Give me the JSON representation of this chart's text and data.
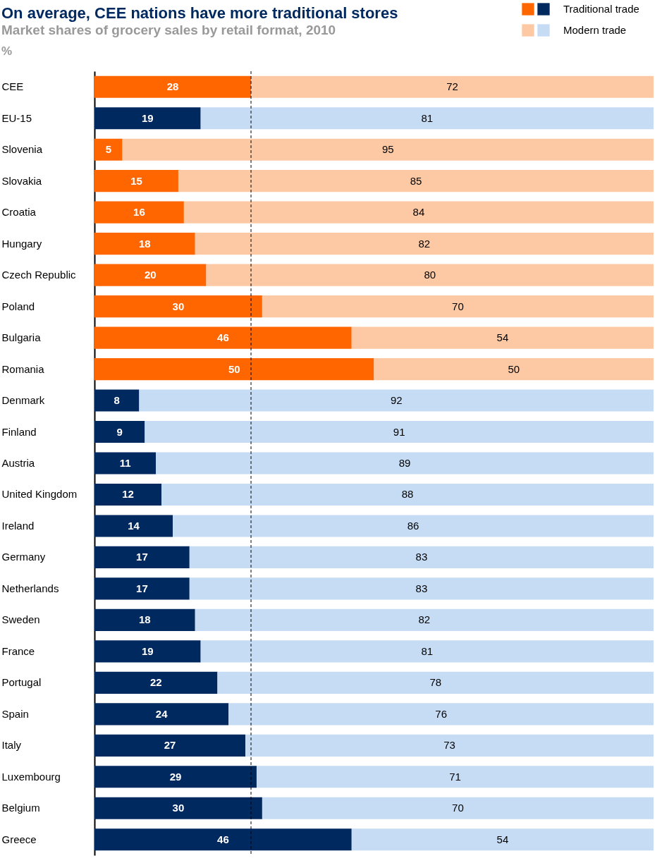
{
  "chart_data": {
    "type": "bar",
    "orientation": "horizontal",
    "stacked": true,
    "title": "On average, CEE nations have more traditional stores",
    "subtitle": "Market shares of grocery sales by retail format, 2010",
    "annotations": [
      "%"
    ],
    "categories": [
      "CEE",
      "EU-15",
      "Slovenia",
      "Slovakia",
      "Croatia",
      "Hungary",
      "Czech Republic",
      "Poland",
      "Bulgaria",
      "Romania",
      "Denmark",
      "Finland",
      "Austria",
      "United Kingdom",
      "Ireland",
      "Germany",
      "Netherlands",
      "Sweden",
      "France",
      "Portugal",
      "Spain",
      "Italy",
      "Luxembourg",
      "Belgium",
      "Greece"
    ],
    "series": [
      {
        "name": "Traditional trade",
        "color": "#ff6600",
        "colors": [
          "#ff6600",
          "#002960",
          "#ff6600",
          "#ff6600",
          "#ff6600",
          "#ff6600",
          "#ff6600",
          "#ff6600",
          "#ff6600",
          "#ff6600",
          "#002960",
          "#002960",
          "#002960",
          "#002960",
          "#002960",
          "#002960",
          "#002960",
          "#002960",
          "#002960",
          "#002960",
          "#002960",
          "#002960",
          "#002960",
          "#002960",
          "#002960"
        ],
        "values": [
          28,
          19,
          5,
          15,
          16,
          18,
          20,
          30,
          46,
          50,
          8,
          9,
          11,
          12,
          14,
          17,
          17,
          18,
          19,
          22,
          24,
          27,
          29,
          30,
          46
        ]
      },
      {
        "name": "Modern trade",
        "color": "#fdc9a4",
        "colors": [
          "#fdc9a4",
          "#c6dcf5",
          "#fdc9a4",
          "#fdc9a4",
          "#fdc9a4",
          "#fdc9a4",
          "#fdc9a4",
          "#fdc9a4",
          "#fdc9a4",
          "#fdc9a4",
          "#c6dcf5",
          "#c6dcf5",
          "#c6dcf5",
          "#c6dcf5",
          "#c6dcf5",
          "#c6dcf5",
          "#c6dcf5",
          "#c6dcf5",
          "#c6dcf5",
          "#c6dcf5",
          "#c6dcf5",
          "#c6dcf5",
          "#c6dcf5",
          "#c6dcf5",
          "#c6dcf5"
        ],
        "values": [
          72,
          81,
          95,
          85,
          84,
          82,
          80,
          70,
          54,
          50,
          92,
          91,
          89,
          88,
          86,
          83,
          83,
          82,
          81,
          78,
          76,
          73,
          71,
          70,
          54
        ]
      }
    ],
    "ref_lines": [
      {
        "axis": "x",
        "value": 28,
        "line_style": "dashed",
        "color": "#000000"
      }
    ],
    "data_labels": true,
    "legend": "top right",
    "grid": false
  }
}
